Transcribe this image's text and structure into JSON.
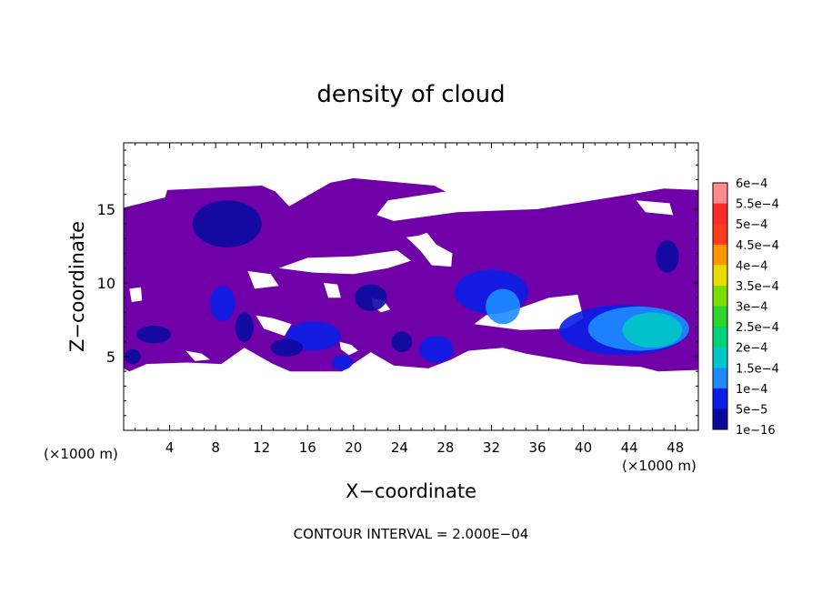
{
  "chart_data": {
    "type": "heatmap",
    "title": "density of cloud",
    "xlabel": "X−coordinate",
    "ylabel": "Z−coordinate",
    "x_unit_label_left": "(×1000 m)",
    "x_unit_label_right": "(×1000 m)",
    "footer": "CONTOUR INTERVAL = 2.000E−04",
    "xlim": [
      0,
      50
    ],
    "ylim": [
      0,
      19.5
    ],
    "x_ticks": [
      4,
      8,
      12,
      16,
      20,
      24,
      28,
      32,
      36,
      40,
      44,
      48
    ],
    "y_ticks": [
      5,
      10,
      15
    ],
    "colorbar": {
      "labels": [
        "6e−4",
        "5.5e−4",
        "5e−4",
        "4.5e−4",
        "4e−4",
        "3.5e−4",
        "3e−4",
        "2.5e−4",
        "2e−4",
        "1.5e−4",
        "1e−4",
        "5e−5",
        "1e−16"
      ],
      "values": [
        0.0006,
        0.00055,
        0.0005,
        0.00045,
        0.0004,
        0.00035,
        0.0003,
        0.00025,
        0.0002,
        0.00015,
        0.0001,
        5e-05,
        1e-16
      ],
      "colors": [
        "#ff8c8c",
        "#ff2a2a",
        "#ff3c1e",
        "#ff9600",
        "#e6dc00",
        "#7fdc00",
        "#2dd42d",
        "#00d27a",
        "#00c8c8",
        "#1e8cff",
        "#0a1ee6",
        "#0a0a9e",
        "#7000a8"
      ]
    },
    "regions": [
      {
        "kind": "main",
        "level": 1e-16,
        "polygon": [
          [
            0.0,
            4.2
          ],
          [
            0.0,
            15.1
          ],
          [
            3.6,
            15.8
          ],
          [
            3.8,
            16.3
          ],
          [
            12.0,
            16.6
          ],
          [
            13.2,
            16.2
          ],
          [
            14.4,
            15.2
          ],
          [
            18.0,
            16.8
          ],
          [
            20.0,
            17.1
          ],
          [
            27.0,
            16.6
          ],
          [
            28.0,
            16.2
          ],
          [
            23.0,
            15.6
          ],
          [
            22.0,
            14.6
          ],
          [
            23.5,
            14.2
          ],
          [
            29.0,
            14.8
          ],
          [
            36.0,
            15.0
          ],
          [
            44.0,
            16.0
          ],
          [
            47.0,
            16.4
          ],
          [
            50.0,
            16.3
          ],
          [
            50.0,
            4.1
          ],
          [
            46.5,
            4.0
          ],
          [
            45.0,
            4.3
          ],
          [
            40.0,
            4.5
          ],
          [
            38.0,
            4.8
          ],
          [
            35.0,
            5.2
          ],
          [
            33.0,
            5.6
          ],
          [
            30.0,
            5.4
          ],
          [
            28.5,
            4.8
          ],
          [
            26.5,
            4.2
          ],
          [
            23.5,
            4.4
          ],
          [
            21.5,
            5.3
          ],
          [
            19.0,
            4.0
          ],
          [
            14.5,
            4.0
          ],
          [
            13.0,
            4.5
          ],
          [
            10.5,
            5.6
          ],
          [
            8.5,
            4.5
          ],
          [
            5.5,
            4.6
          ],
          [
            2.0,
            4.5
          ],
          [
            0.5,
            4.0
          ]
        ]
      },
      {
        "kind": "hole",
        "polygon": [
          [
            13.5,
            11.0
          ],
          [
            16.5,
            10.7
          ],
          [
            20.0,
            10.6
          ],
          [
            23.0,
            11.0
          ],
          [
            25.0,
            11.5
          ],
          [
            23.8,
            12.2
          ],
          [
            20.0,
            11.8
          ],
          [
            16.0,
            11.7
          ]
        ]
      },
      {
        "kind": "hole",
        "polygon": [
          [
            24.6,
            13.1
          ],
          [
            25.8,
            12.2
          ],
          [
            26.8,
            11.2
          ],
          [
            28.5,
            11.1
          ],
          [
            28.6,
            12.0
          ],
          [
            27.2,
            12.6
          ],
          [
            26.4,
            13.4
          ],
          [
            25.6,
            13.2
          ]
        ]
      },
      {
        "kind": "hole",
        "polygon": [
          [
            10.8,
            10.8
          ],
          [
            12.8,
            10.6
          ],
          [
            13.5,
            9.8
          ],
          [
            11.4,
            9.6
          ]
        ]
      },
      {
        "kind": "hole",
        "polygon": [
          [
            17.4,
            10.0
          ],
          [
            18.6,
            9.9
          ],
          [
            18.9,
            9.0
          ],
          [
            17.8,
            9.0
          ]
        ]
      },
      {
        "kind": "hole",
        "polygon": [
          [
            0.5,
            9.6
          ],
          [
            1.5,
            9.7
          ],
          [
            1.6,
            8.8
          ],
          [
            0.7,
            8.7
          ]
        ]
      },
      {
        "kind": "hole",
        "polygon": [
          [
            30.5,
            7.2
          ],
          [
            34.5,
            6.8
          ],
          [
            38.5,
            6.9
          ],
          [
            40.0,
            7.6
          ],
          [
            39.5,
            9.2
          ],
          [
            37.0,
            9.0
          ],
          [
            34.5,
            8.3
          ],
          [
            31.5,
            7.8
          ]
        ]
      },
      {
        "kind": "hole",
        "polygon": [
          [
            11.5,
            7.8
          ],
          [
            13.0,
            7.6
          ],
          [
            14.6,
            7.2
          ],
          [
            14.0,
            6.4
          ],
          [
            12.2,
            6.9
          ]
        ]
      },
      {
        "kind": "hole",
        "polygon": [
          [
            18.8,
            6.0
          ],
          [
            19.8,
            5.8
          ],
          [
            20.4,
            5.4
          ],
          [
            19.6,
            5.1
          ],
          [
            18.9,
            5.5
          ]
        ]
      },
      {
        "kind": "hole",
        "polygon": [
          [
            21.6,
            9.0
          ],
          [
            22.6,
            8.8
          ],
          [
            23.2,
            8.2
          ],
          [
            22.4,
            8.0
          ],
          [
            21.7,
            8.4
          ]
        ]
      },
      {
        "kind": "hole",
        "polygon": [
          [
            44.6,
            15.6
          ],
          [
            47.5,
            15.4
          ],
          [
            47.8,
            14.6
          ],
          [
            45.4,
            14.8
          ]
        ]
      },
      {
        "kind": "hole",
        "polygon": [
          [
            5.4,
            5.4
          ],
          [
            6.8,
            5.2
          ],
          [
            7.5,
            4.8
          ],
          [
            6.2,
            4.7
          ]
        ]
      }
    ],
    "blobs": [
      {
        "cx": 9.0,
        "cy": 14.0,
        "rx": 3.0,
        "ry": 1.6,
        "level": 5e-05
      },
      {
        "cx": 8.6,
        "cy": 8.6,
        "rx": 1.1,
        "ry": 1.2,
        "level": 0.0001
      },
      {
        "cx": 10.5,
        "cy": 7.0,
        "rx": 0.8,
        "ry": 1.0,
        "level": 5e-05
      },
      {
        "cx": 16.5,
        "cy": 6.4,
        "rx": 2.4,
        "ry": 1.0,
        "level": 0.0001
      },
      {
        "cx": 14.2,
        "cy": 5.6,
        "rx": 1.4,
        "ry": 0.6,
        "level": 5e-05
      },
      {
        "cx": 19.0,
        "cy": 4.6,
        "rx": 0.9,
        "ry": 0.5,
        "level": 0.0001
      },
      {
        "cx": 21.5,
        "cy": 9.0,
        "rx": 1.4,
        "ry": 0.9,
        "level": 5e-05
      },
      {
        "cx": 24.2,
        "cy": 6.0,
        "rx": 0.9,
        "ry": 0.7,
        "level": 5e-05
      },
      {
        "cx": 27.2,
        "cy": 5.5,
        "rx": 1.5,
        "ry": 0.9,
        "level": 0.0001
      },
      {
        "cx": 2.6,
        "cy": 6.5,
        "rx": 1.5,
        "ry": 0.6,
        "level": 5e-05
      },
      {
        "cx": 0.8,
        "cy": 5.0,
        "rx": 0.7,
        "ry": 0.5,
        "level": 5e-05
      },
      {
        "cx": 32.0,
        "cy": 9.4,
        "rx": 3.2,
        "ry": 1.5,
        "level": 0.0001
      },
      {
        "cx": 33.0,
        "cy": 8.4,
        "rx": 1.5,
        "ry": 1.2,
        "level": 0.00015
      },
      {
        "cx": 47.3,
        "cy": 11.8,
        "rx": 1.0,
        "ry": 1.1,
        "level": 5e-05
      },
      {
        "cx": 43.5,
        "cy": 6.8,
        "rx": 5.6,
        "ry": 1.7,
        "level": 0.0001
      },
      {
        "cx": 44.8,
        "cy": 6.9,
        "rx": 4.4,
        "ry": 1.5,
        "level": 0.00015
      },
      {
        "cx": 46.0,
        "cy": 6.8,
        "rx": 2.6,
        "ry": 1.2,
        "level": 0.0002
      }
    ]
  }
}
